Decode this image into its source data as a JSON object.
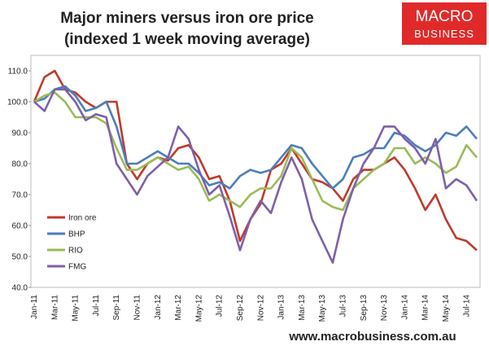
{
  "chart_data": {
    "type": "line",
    "title": "Major miners versus iron ore price",
    "subtitle": "(indexed 1 week moving average)",
    "brand": [
      "MACRO",
      "BUSINESS"
    ],
    "source_url": "www.macrobusiness.com.au",
    "categories": [
      "Jan-11",
      null,
      "Mar-11",
      null,
      "May-11",
      null,
      "Jul-11",
      null,
      "Sep-11",
      null,
      "Nov-11",
      null,
      "Jan-12",
      null,
      "Mar-12",
      null,
      "May-12",
      null,
      "Jul-12",
      null,
      "Sep-12",
      null,
      "Nov-12",
      null,
      "Jan-13",
      null,
      "Mar-13",
      null,
      "May-13",
      null,
      "Jul-13",
      null,
      "Sep-13",
      null,
      "Nov-13",
      null,
      "Jan-14",
      null,
      "Mar-14",
      null,
      "May-14",
      null,
      "Jul-14",
      null
    ],
    "series": [
      {
        "name": "Iron ore",
        "color": "#c0392b",
        "values": [
          100,
          108,
          110,
          104,
          103,
          100,
          98,
          100,
          100,
          80,
          75,
          80,
          82,
          81,
          85,
          86,
          82,
          75,
          76,
          68,
          55,
          62,
          67,
          78,
          80,
          85,
          80,
          75,
          74,
          72,
          68,
          75,
          78,
          78,
          80,
          82,
          78,
          72,
          65,
          70,
          62,
          56,
          55,
          52
        ]
      },
      {
        "name": "BHP",
        "color": "#4a7ebb",
        "values": [
          100,
          101,
          104,
          105,
          102,
          97,
          98,
          100,
          92,
          80,
          80,
          82,
          84,
          82,
          80,
          80,
          77,
          73,
          74,
          72,
          76,
          78,
          77,
          78,
          82,
          86,
          85,
          80,
          76,
          72,
          75,
          82,
          83,
          85,
          85,
          90,
          89,
          86,
          84,
          86,
          90,
          89,
          92,
          88
        ]
      },
      {
        "name": "RIO",
        "color": "#9bbb59",
        "values": [
          100,
          102,
          103,
          100,
          95,
          95,
          95,
          93,
          85,
          78,
          78,
          80,
          82,
          80,
          78,
          79,
          75,
          68,
          70,
          68,
          66,
          70,
          72,
          72,
          76,
          85,
          82,
          75,
          68,
          66,
          65,
          72,
          75,
          78,
          80,
          85,
          85,
          80,
          82,
          80,
          77,
          79,
          86,
          82
        ]
      },
      {
        "name": "FMG",
        "color": "#7f5fa8",
        "values": [
          100,
          97,
          104,
          104,
          100,
          94,
          96,
          95,
          80,
          75,
          70,
          76,
          79,
          82,
          92,
          88,
          78,
          70,
          73,
          63,
          52,
          62,
          68,
          64,
          74,
          82,
          75,
          62,
          55,
          48,
          62,
          72,
          80,
          85,
          92,
          92,
          88,
          85,
          80,
          88,
          72,
          75,
          73,
          68
        ]
      }
    ],
    "ylim": [
      40,
      115
    ],
    "yticks": [
      {
        "value": 40,
        "label": "40.0"
      },
      {
        "value": 50,
        "label": "50.0"
      },
      {
        "value": 60,
        "label": "60.0"
      },
      {
        "value": 70,
        "label": "70.0"
      },
      {
        "value": 80,
        "label": "80.0"
      },
      {
        "value": 90,
        "label": "90.0"
      },
      {
        "value": 100,
        "label": "100.0"
      },
      {
        "value": 110,
        "label": "110.0"
      }
    ],
    "grid": false,
    "legend": "lower-left"
  }
}
